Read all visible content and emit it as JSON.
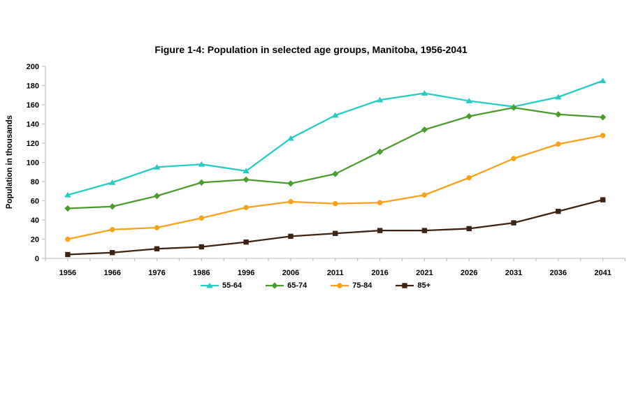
{
  "figure": {
    "title": "Figure 1-4: Population in selected age groups, Manitoba, 1956-2041",
    "ylabel": "Population in thousands"
  },
  "chart_data": {
    "type": "line",
    "title": "Figure 1-4: Population in selected age groups, Manitoba, 1956-2041",
    "xlabel": "",
    "ylabel": "Population in thousands",
    "categories": [
      "1956",
      "1966",
      "1976",
      "1986",
      "1996",
      "2006",
      "2011",
      "2016",
      "2021",
      "2026",
      "2031",
      "2036",
      "2041"
    ],
    "y_ticks": [
      0,
      20,
      40,
      60,
      80,
      100,
      120,
      140,
      160,
      180,
      200
    ],
    "ylim": [
      0,
      200
    ],
    "grid": false,
    "legend_position": "bottom",
    "axis_color": "#c6c6c6",
    "series": [
      {
        "name": "55-64",
        "color": "#26cbc3",
        "marker": "triangle",
        "values": [
          66,
          79,
          95,
          98,
          91,
          125,
          149,
          165,
          172,
          164,
          158,
          168,
          185
        ]
      },
      {
        "name": "65-74",
        "color": "#4c9c2d",
        "marker": "diamond",
        "values": [
          52,
          54,
          65,
          79,
          82,
          78,
          88,
          111,
          134,
          148,
          157,
          150,
          147
        ]
      },
      {
        "name": "75-84",
        "color": "#f9a11b",
        "marker": "circle",
        "values": [
          20,
          30,
          32,
          42,
          53,
          59,
          57,
          58,
          66,
          84,
          104,
          119,
          128
        ]
      },
      {
        "name": "85+",
        "color": "#3e2313",
        "marker": "square",
        "values": [
          4,
          6,
          10,
          12,
          17,
          23,
          26,
          29,
          29,
          31,
          37,
          49,
          61
        ]
      }
    ]
  }
}
